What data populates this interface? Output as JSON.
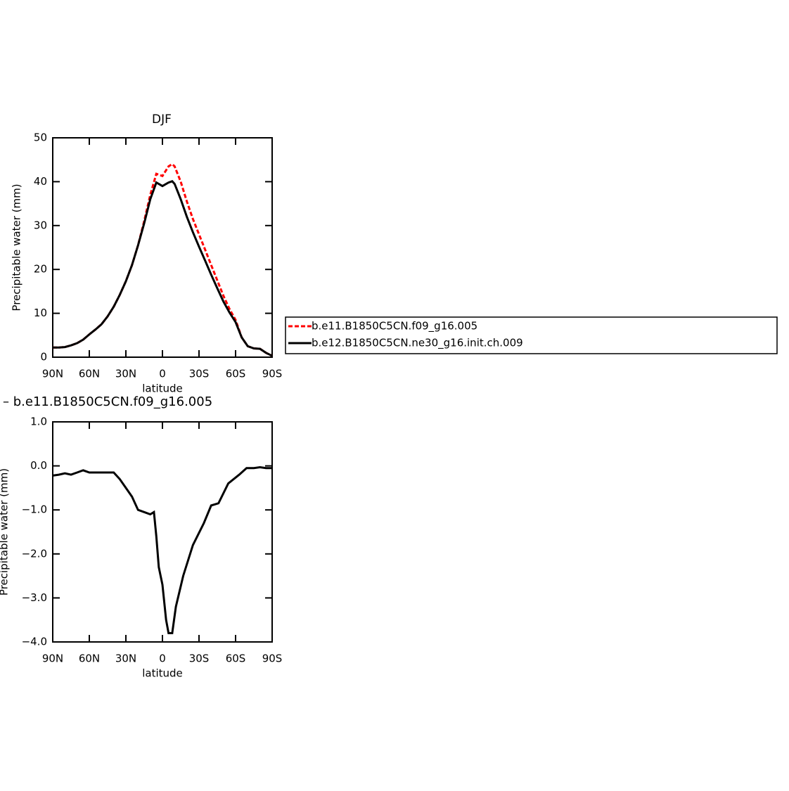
{
  "chart_data": [
    {
      "type": "line",
      "title": "DJF",
      "xlabel": "latitude",
      "ylabel": "Precipitable water (mm)",
      "x": [
        90,
        85,
        80,
        75,
        70,
        65,
        60,
        55,
        50,
        45,
        40,
        35,
        30,
        25,
        20,
        15,
        10,
        5,
        0,
        -5,
        -8,
        -10,
        -15,
        -20,
        -25,
        -30,
        -35,
        -40,
        -45,
        -50,
        -55,
        -60,
        -65,
        -70,
        -75,
        -80,
        -85,
        -90
      ],
      "series": [
        {
          "name": "b.e11.B1850C5CN.f09_g16.005",
          "color": "#ff0000",
          "line_style": "dashed",
          "values": [
            2.2,
            2.2,
            2.3,
            2.7,
            3.2,
            4.0,
            5.2,
            6.3,
            7.5,
            9.3,
            11.5,
            14.2,
            17.3,
            21,
            25.5,
            31,
            37,
            41.8,
            41.3,
            43.5,
            44,
            43.5,
            40,
            35.5,
            31.5,
            28,
            24.5,
            21,
            17.5,
            14,
            11,
            8.5,
            4.5,
            2.5,
            2.0,
            1.9,
            1.0,
            0.3
          ]
        },
        {
          "name": "b.e12.B1850C5CN.ne30_g16.init.ch.009",
          "color": "#000000",
          "line_style": "solid",
          "values": [
            2.2,
            2.2,
            2.3,
            2.7,
            3.2,
            4.0,
            5.2,
            6.3,
            7.5,
            9.3,
            11.5,
            14.2,
            17.3,
            21,
            25.5,
            30.5,
            36,
            39.8,
            39,
            39.8,
            40.1,
            39.5,
            36,
            32,
            28.5,
            25.2,
            22,
            18.8,
            15.7,
            12.7,
            10.2,
            8,
            4.5,
            2.5,
            2.0,
            1.9,
            1.0,
            0.3
          ]
        }
      ],
      "xlim": [
        90,
        -90
      ],
      "xticks": [
        {
          "value": 90,
          "label": "90N"
        },
        {
          "value": 60,
          "label": "60N"
        },
        {
          "value": 30,
          "label": "30N"
        },
        0,
        {
          "value": -30,
          "label": "30S"
        },
        {
          "value": -60,
          "label": "60S"
        },
        {
          "value": -90,
          "label": "90S"
        }
      ],
      "ylim": [
        0,
        50
      ],
      "yticks": [
        0,
        10,
        20,
        30,
        40,
        50
      ]
    },
    {
      "type": "line",
      "title": "– b.e11.B1850C5CN.f09_g16.005",
      "xlabel": "latitude",
      "ylabel": "Precipitable water (mm)",
      "x": [
        90,
        85,
        80,
        75,
        70,
        65,
        60,
        55,
        50,
        45,
        40,
        35,
        30,
        25,
        20,
        15,
        10,
        7,
        5,
        3,
        0,
        -3,
        -5,
        -8,
        -11,
        -17,
        -25,
        -34,
        -40,
        -46,
        -54,
        -63,
        -69,
        -75,
        -80,
        -85,
        -90
      ],
      "values": [
        -0.22,
        -0.2,
        -0.17,
        -0.2,
        -0.15,
        -0.1,
        -0.15,
        -0.15,
        -0.15,
        -0.15,
        -0.15,
        -0.3,
        -0.5,
        -0.7,
        -1.0,
        -1.05,
        -1.1,
        -1.05,
        -1.6,
        -2.3,
        -2.7,
        -3.5,
        -3.8,
        -3.8,
        -3.2,
        -2.5,
        -1.8,
        -1.3,
        -0.9,
        -0.85,
        -0.4,
        -0.2,
        -0.05,
        -0.05,
        -0.03,
        -0.05,
        -0.05
      ],
      "color": "#000000",
      "line_style": "solid",
      "xlim": [
        90,
        -90
      ],
      "xticks": [
        {
          "value": 90,
          "label": "90N"
        },
        {
          "value": 60,
          "label": "60N"
        },
        {
          "value": 30,
          "label": "30N"
        },
        0,
        {
          "value": -30,
          "label": "30S"
        },
        {
          "value": -60,
          "label": "60S"
        },
        {
          "value": -90,
          "label": "90S"
        }
      ],
      "ylim": [
        -4,
        1
      ],
      "yticks": [
        {
          "value": -4,
          "label": "−4.0"
        },
        {
          "value": -3,
          "label": "−3.0"
        },
        {
          "value": -2,
          "label": "−2.0"
        },
        {
          "value": -1,
          "label": "−1.0"
        },
        {
          "value": 0,
          "label": "0.0"
        },
        {
          "value": 1,
          "label": "1.0"
        }
      ]
    }
  ]
}
